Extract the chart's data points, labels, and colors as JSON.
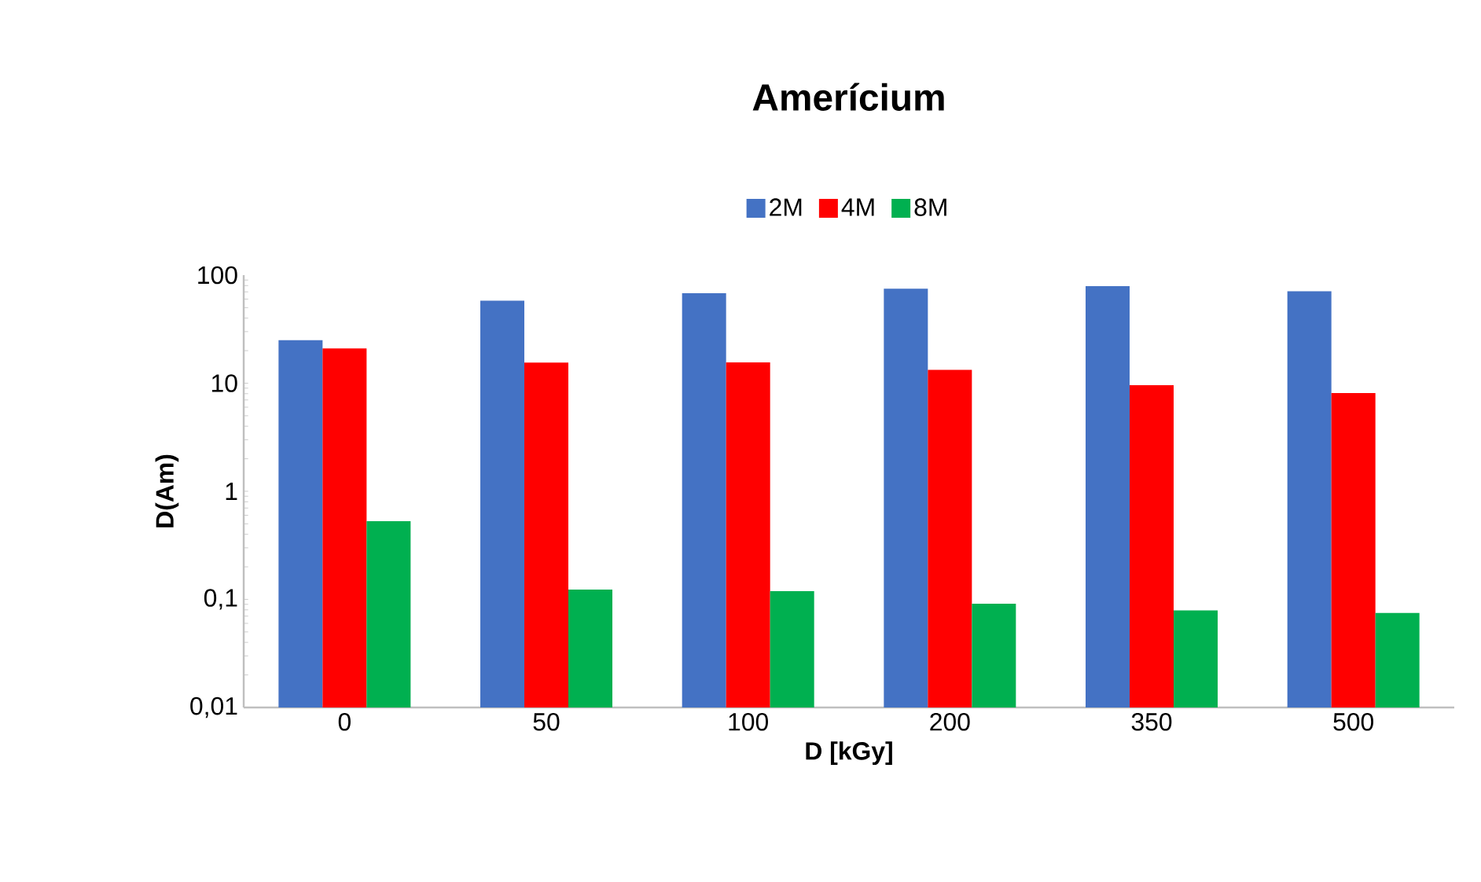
{
  "chart_data": {
    "type": "bar",
    "title": "Amerícium",
    "xlabel": "D [kGy]",
    "ylabel": "D(Am)",
    "categories": [
      "0",
      "50",
      "100",
      "200",
      "350",
      "500"
    ],
    "series": [
      {
        "name": "2M",
        "color": "#4472c4",
        "values": [
          25,
          58,
          68,
          75,
          79,
          71
        ]
      },
      {
        "name": "4M",
        "color": "#ff0000",
        "values": [
          21,
          15.5,
          15.6,
          13.3,
          9.6,
          8.1
        ]
      },
      {
        "name": "8M",
        "color": "#00b050",
        "values": [
          0.53,
          0.123,
          0.119,
          0.091,
          0.079,
          0.075
        ]
      }
    ],
    "log": "y",
    "ylim": [
      0.01,
      100
    ],
    "yticks": [
      {
        "value": 0.01,
        "label": "0,01"
      },
      {
        "value": 0.1,
        "label": "0,1"
      },
      {
        "value": 1,
        "label": "1"
      },
      {
        "value": 10,
        "label": "10"
      },
      {
        "value": 100,
        "label": "100"
      }
    ],
    "grid": false,
    "legend": "top"
  }
}
